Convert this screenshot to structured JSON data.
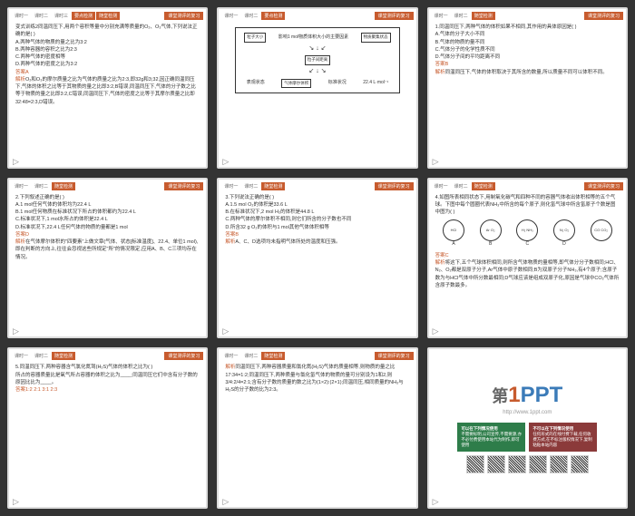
{
  "header_right": "课堂测评的复习",
  "tabs": {
    "items": [
      "课时一",
      "课时二",
      "课时三",
      "要点检测"
    ],
    "active_label": "随堂检测"
  },
  "slides": [
    {
      "page": "19",
      "question": "变式训练2同温同压下,用两个容积等量中分别充满等质量的O₂、O₃气体,下列说法正确的是( )",
      "options": [
        "A.两种气体的物质的量之比为3:2",
        "B.两种容器的容积之比为2:3",
        "C.两种气体的密度相等",
        "D.两种气体的密度之比为3:2"
      ],
      "answer_label": "答案",
      "answer": "A",
      "analysis_label": "解析",
      "analysis": "O₂和O₃的摩尔质量之比为气体的质量之比为2:3,即32g和3;32,因正确同温同压下,气体的体积之比等于其物质的量之比即3:2,B错误,同温同压下,气体的分子数之比等于物质的量之比即3:2,C错误,同温同压下,气体的密度之比等于其摩尔质量之比即32:48=2:3,D错误。"
    },
    {
      "page": "20",
      "diagram": {
        "top_left": "粒子大小",
        "top_center": "影响1 mol物质体积大小的主要因素",
        "top_right": "物质聚集状态",
        "middle": "粒子间距离",
        "bottom_left": "表观状态",
        "bottom_center": "气体摩尔体积",
        "bottom_right": "标准状况",
        "value": "22.4 L·mol⁻¹"
      }
    },
    {
      "page": "21",
      "question": "1.同温同压下,两种气体的体积如果不相同,其作用的具体原因是( )",
      "options": [
        "A.气体的分子大小不同",
        "B.气体的物质的量不同",
        "C.气体分子的化学性质不同",
        "D.气体分子间的平均距离不同"
      ],
      "answer_label": "答案",
      "answer": "B",
      "analysis_label": "解析",
      "analysis": "同温同压下,气体的体积取决于其所含的数量,所以质量不同可以体积不同。"
    },
    {
      "page": "22",
      "question": "2.下列叙述正确的是( )",
      "options": [
        "A.1 mol任何气体的体积均为22.4 L",
        "B.1 mol任何物质在标准状况下所占的体积都约为22.4 L",
        "C.标准状况下,1 mol水所占的体积是22.4 L",
        "D.标准状况下,22.4 L任何气体的物质的量都是1 mol"
      ],
      "answer_label": "答案",
      "answer": "D",
      "analysis_label": "解析",
      "analysis": "在气体摩尔体积的\"四要素\"上做文章(气体、状态[标准温度]、22.4、单位1 mol),即在判断的方向上,往往会忽视这些所规定\"所\"的情况限定,应用A、B、C三项均存在情况。"
    },
    {
      "page": "23",
      "question": "3.下列说法正确的是( )",
      "options": [
        "A.1.5 mol O₂的体积是33.6 L",
        "B.在标准状况下,2 mol H₂的体积是44.8 L",
        "C.两种气体的摩尔体积不相同,则它们所含的分子数也不同",
        "D.所含32 g O₂的体积与1 mol其他气体体积相等"
      ],
      "answer_label": "答案",
      "answer": "B",
      "analysis_label": "解析",
      "analysis": "A、C、D选项均未指明气体所处的温度和压强。"
    },
    {
      "page": "24",
      "question": "4.如图所表相同状态下,用制氧化碳气和四种不同的容器气体收出体积相等的五个气球。下图中每个圆圈代表NH₃中所含的每个原子,则化氢气球中所含氢原子个数是图中图为( )",
      "molecules": [
        {
          "formula": "HCl",
          "label": "A"
        },
        {
          "formula": "Ar O₂",
          "label": "B"
        },
        {
          "formula": "H₂ NH₃",
          "label": "C"
        },
        {
          "formula": "N₂ O₂",
          "label": "D"
        },
        {
          "formula": "CO CO₂",
          "label": ""
        }
      ],
      "answer_label": "答案",
      "answer": "C",
      "analysis_label": "解析",
      "analysis": "将这下,五个气球体积相同,则所含气体物质的量相等,即气体分分子数相同;HCl、N₂、O₂都是双原子分子,Ar气体中原子数相同;B为双原子分子NH₃,有4个原子;含原子数为与HCl气体中所分数最相同;D气球应该是组成双原子化,原因是气球中CO₂气体所含原子数最多。"
    },
    {
      "page": "25",
      "question": "5.同温同压下,两种容器含气氯化氮驾(H₂S)气体的体积之比为( )",
      "question_cont": "所占的容器质量比是氧气所占容器的体积之比为____;同温同压它们中含有分子数的原因比比为____。",
      "answer_label": "答案",
      "answer": "1:2  2:1  3:1  2:3"
    },
    {
      "page": "26",
      "analysis_label": "解析",
      "analysis": "同温同压下,两种容器质量和氯化氮(H₂S)气体的质量相等,则物质的量之比17:34=1:2;同温同压下,两种质量与氯化氢气体的物质的量可分别设为1和2,则 3/4:2/4=2:1;含有分子数的质量的数之比为(1×2):(2×1);同温同压,相同质量的NH₃与H₂S的分子数的比为2:3。"
    },
    {
      "page": "27",
      "logo": {
        "prefix": "第",
        "one": "1",
        "ppt": "PPT",
        "url": "http://www.1ppt.com"
      },
      "box_green": {
        "title": "可以在下列情况使用",
        "text": "不需要标明,公司宣传,不需要源,亦不必付费使用本站代为制作,即可使用"
      },
      "box_red": {
        "title": "不可以在下列情况使用",
        "text": "任何形式的在线付费下载,任何收费方式,在不标注版权情况下,复制粘贴本站内容"
      }
    }
  ]
}
